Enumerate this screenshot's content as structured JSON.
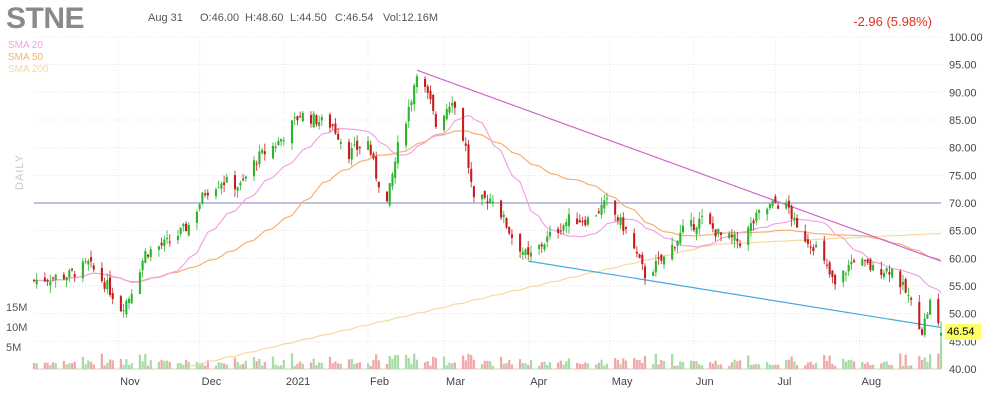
{
  "header": {
    "ticker": "STNE",
    "date": "Aug 31",
    "open": "O:46.00",
    "high": "H:48.60",
    "low": "L:44.50",
    "close": "C:46.54",
    "volume": "Vol:12.16M",
    "change": "-2.96 (5.98%)"
  },
  "legend": {
    "sma20": "SMA 20",
    "sma50": "SMA 50",
    "sma200": "SMA 200",
    "timeframe": "DAILY"
  },
  "colors": {
    "up": "#2bb52b",
    "down": "#c51d1d",
    "sma20": "#f2a3e4",
    "sma50": "#f5b070",
    "sma200": "#f6d9a0",
    "trendline_upper": "#cc66cc",
    "trendline_lower": "#44aadd",
    "horizontal": "#8080c0",
    "vol_up": "#a8dba8",
    "vol_down": "#f0a8a8"
  },
  "chart_data": {
    "type": "candlestick",
    "title": "STNE",
    "ylim": [
      40,
      100
    ],
    "y_ticks": [
      "100.00",
      "95.00",
      "90.00",
      "85.00",
      "80.00",
      "75.00",
      "70.00",
      "65.00",
      "60.00",
      "55.00",
      "50.00",
      "45.00",
      "40.00"
    ],
    "x_ticks": [
      "Nov",
      "Dec",
      "2021",
      "Feb",
      "Mar",
      "Apr",
      "May",
      "Jun",
      "Jul",
      "Aug"
    ],
    "volume_ticks": [
      "15M",
      "10M",
      "5M"
    ],
    "last_price": "46.54",
    "horizontal_line": 70,
    "trendlines": [
      {
        "name": "upper",
        "from": {
          "date": "2021-02-19",
          "price": 94
        },
        "to": {
          "date": "2021-08-31",
          "price": 59.5
        }
      },
      {
        "name": "lower",
        "from": {
          "date": "2021-04-01",
          "price": 59.5
        },
        "to": {
          "date": "2021-08-31",
          "price": 47.5
        }
      }
    ],
    "anchors": [
      [
        "2020-10-01",
        56
      ],
      [
        "2020-10-14",
        57
      ],
      [
        "2020-10-21",
        59
      ],
      [
        "2020-10-28",
        55
      ],
      [
        "2020-11-02",
        51
      ],
      [
        "2020-11-05",
        53
      ],
      [
        "2020-11-11",
        61
      ],
      [
        "2020-11-20",
        63
      ],
      [
        "2020-11-27",
        66
      ],
      [
        "2020-12-03",
        72
      ],
      [
        "2020-12-09",
        74
      ],
      [
        "2020-12-16",
        73
      ],
      [
        "2020-12-22",
        78
      ],
      [
        "2020-12-30",
        81
      ],
      [
        "2021-01-07",
        86
      ],
      [
        "2021-01-13",
        85
      ],
      [
        "2021-01-19",
        84
      ],
      [
        "2021-01-25",
        79
      ],
      [
        "2021-02-01",
        81
      ],
      [
        "2021-02-04",
        75
      ],
      [
        "2021-02-08",
        70
      ],
      [
        "2021-02-12",
        80
      ],
      [
        "2021-02-17",
        89
      ],
      [
        "2021-02-19",
        94
      ],
      [
        "2021-02-24",
        88
      ],
      [
        "2021-02-26",
        84
      ],
      [
        "2021-03-04",
        89
      ],
      [
        "2021-03-09",
        80
      ],
      [
        "2021-03-12",
        70
      ],
      [
        "2021-03-19",
        71
      ],
      [
        "2021-03-26",
        64
      ],
      [
        "2021-04-01",
        60
      ],
      [
        "2021-04-09",
        64
      ],
      [
        "2021-04-16",
        67
      ],
      [
        "2021-04-23",
        67
      ],
      [
        "2021-04-30",
        70
      ],
      [
        "2021-05-07",
        65
      ],
      [
        "2021-05-14",
        57
      ],
      [
        "2021-05-21",
        60
      ],
      [
        "2021-05-28",
        65
      ],
      [
        "2021-06-04",
        67
      ],
      [
        "2021-06-11",
        64
      ],
      [
        "2021-06-18",
        63
      ],
      [
        "2021-06-25",
        68
      ],
      [
        "2021-07-01",
        70
      ],
      [
        "2021-07-06",
        69
      ],
      [
        "2021-07-09",
        65
      ],
      [
        "2021-07-16",
        62
      ],
      [
        "2021-07-23",
        55
      ],
      [
        "2021-07-30",
        60
      ],
      [
        "2021-08-06",
        58
      ],
      [
        "2021-08-13",
        58
      ],
      [
        "2021-08-19",
        53
      ],
      [
        "2021-08-24",
        47
      ],
      [
        "2021-08-27",
        52
      ],
      [
        "2021-08-31",
        46.5
      ]
    ]
  }
}
